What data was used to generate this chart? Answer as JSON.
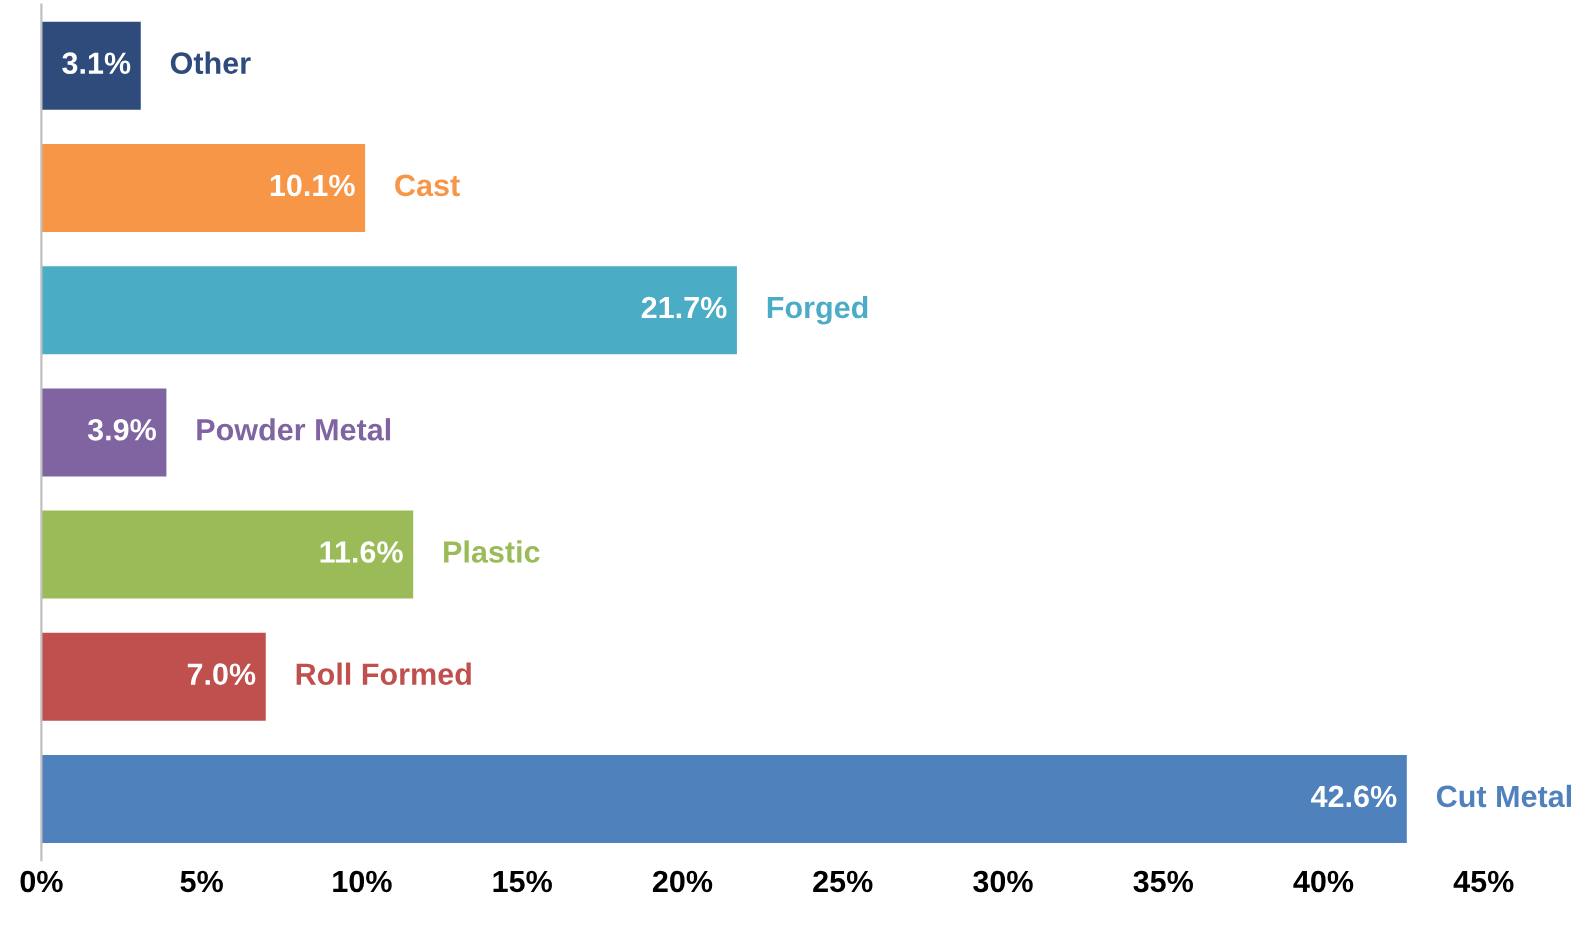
{
  "chart_data": {
    "type": "bar",
    "orientation": "horizontal",
    "categories": [
      "Other",
      "Cast",
      "Forged",
      "Powder Metal",
      "Plastic",
      "Roll Formed",
      "Cut Metal"
    ],
    "values": [
      3.1,
      10.1,
      21.7,
      3.9,
      11.6,
      7.0,
      42.6
    ],
    "colors": [
      "#2e4b7c",
      "#f79646",
      "#4bacc6",
      "#8064a2",
      "#9bbb59",
      "#c0504d",
      "#4f81bd"
    ],
    "value_labels": [
      "3.1%",
      "10.1%",
      "21.7%",
      "3.9%",
      "11.6%",
      "7.0%",
      "42.6%"
    ],
    "xlim": [
      0,
      45
    ],
    "xticks": [
      {
        "value": 0,
        "label": "0%"
      },
      {
        "value": 5,
        "label": "5%"
      },
      {
        "value": 10,
        "label": "10%"
      },
      {
        "value": 15,
        "label": "15%"
      },
      {
        "value": 20,
        "label": "20%"
      },
      {
        "value": 25,
        "label": "25%"
      },
      {
        "value": 30,
        "label": "30%"
      },
      {
        "value": 35,
        "label": "35%"
      },
      {
        "value": 40,
        "label": "40%"
      },
      {
        "value": 45,
        "label": "45%"
      }
    ],
    "grid": false,
    "legend": false
  }
}
